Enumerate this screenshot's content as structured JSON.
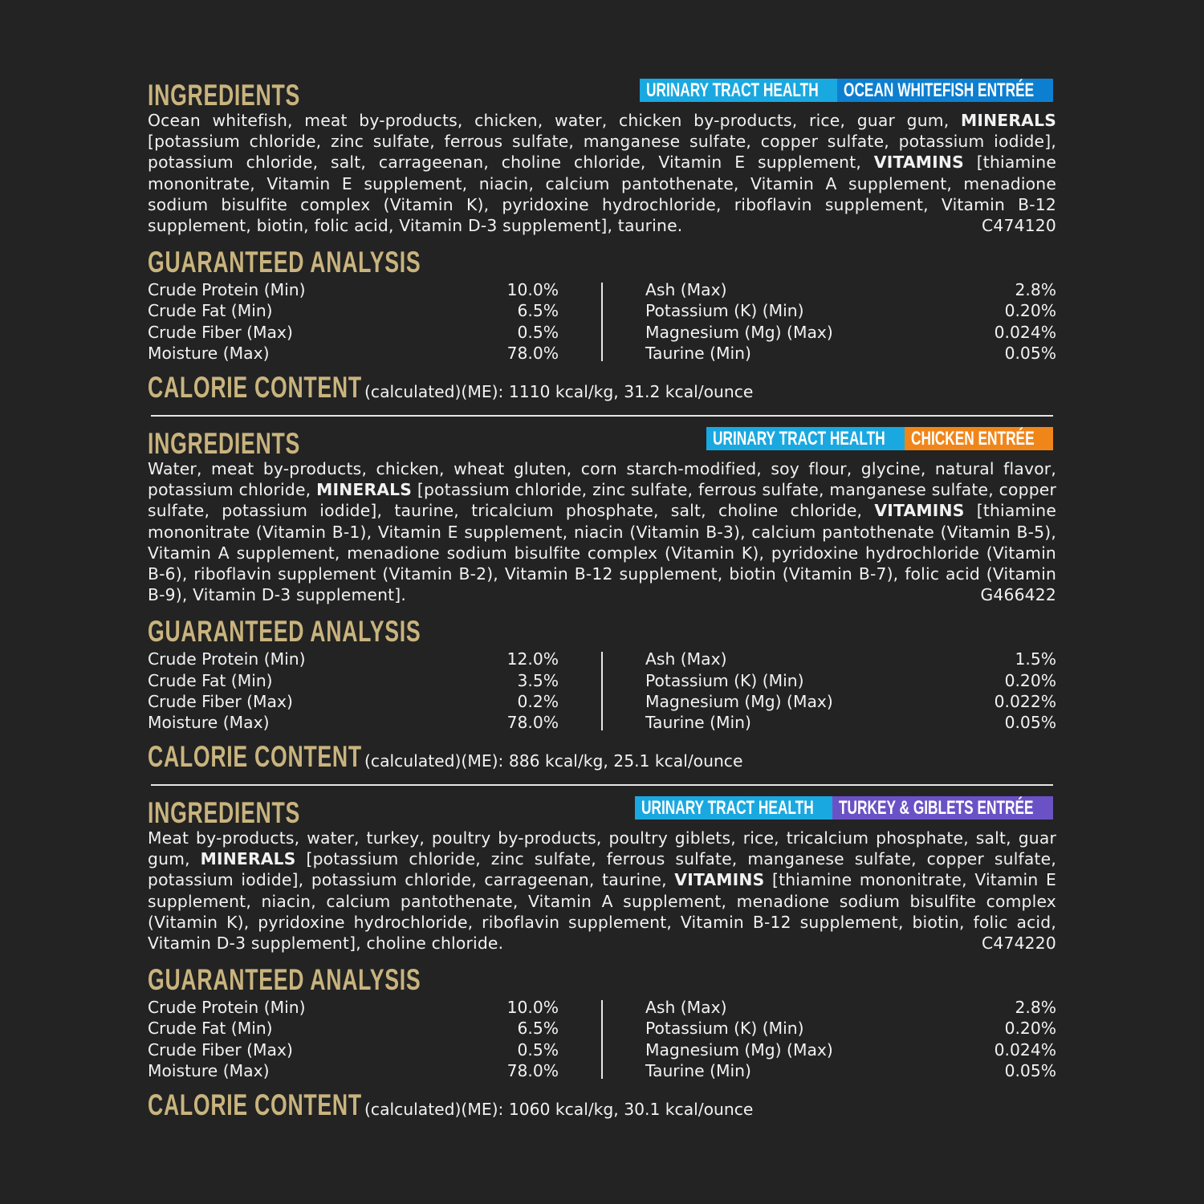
{
  "colors": {
    "background": "#232323",
    "heading_gold": "#c9b47e",
    "urinary_badge": "#1aa8e0",
    "whitefish_badge": "#0d7fd0",
    "chicken_badge": "#f0861a",
    "turkey_badge": "#6a52c6"
  },
  "labels": {
    "ingredients": "INGREDIENTS",
    "guaranteed_analysis": "GUARANTEED ANALYSIS",
    "calorie_content": "CALORIE CONTENT"
  },
  "products": [
    {
      "badges": [
        {
          "text": "URINARY TRACT HEALTH",
          "color": "#1aa8e0"
        },
        {
          "text": "OCEAN WHITEFISH ENTRÉE",
          "color": "#0d7fd0"
        }
      ],
      "ingredients": [
        {
          "t": "Ocean whitefish, meat by-products, chicken, water, chicken by-products, rice, guar gum, "
        },
        {
          "t": "MINERALS",
          "b": true
        },
        {
          "t": " [potassium chloride, zinc sulfate, ferrous sulfate, manganese sulfate, copper sulfate, potassium iodide], potassium chloride, salt, carrageenan, choline chloride, Vitamin E supplement, "
        },
        {
          "t": "VITAMINS",
          "b": true
        },
        {
          "t": " [thiamine mononitrate, Vitamin E supplement, niacin, calcium pantothenate, Vitamin A supplement, menadione sodium bisulfite complex (Vitamin K), pyridoxine hydrochloride, riboflavin supplement, Vitamin B-12 supplement, biotin, folic acid, Vitamin D-3 supplement], taurine."
        }
      ],
      "code": "C474120",
      "analysis_left": [
        [
          "Crude Protein (Min)",
          "10.0%"
        ],
        [
          "Crude Fat (Min)",
          "6.5%"
        ],
        [
          "Crude Fiber (Max)",
          "0.5%"
        ],
        [
          "Moisture (Max)",
          "78.0%"
        ]
      ],
      "analysis_right": [
        [
          "Ash (Max)",
          "2.8%"
        ],
        [
          "Potassium (K) (Min)",
          "0.20%"
        ],
        [
          "Magnesium (Mg) (Max)",
          "0.024%"
        ],
        [
          "Taurine (Min)",
          "0.05%"
        ]
      ],
      "calorie": "(calculated)(ME): 1110 kcal/kg, 31.2 kcal/ounce"
    },
    {
      "badges": [
        {
          "text": "URINARY TRACT HEALTH",
          "color": "#1aa8e0"
        },
        {
          "text": "CHICKEN ENTRÉE",
          "color": "#f0861a"
        }
      ],
      "ingredients": [
        {
          "t": "Water, meat by-products, chicken, wheat gluten, corn starch-modified, soy flour, glycine, natural flavor, potassium chloride, "
        },
        {
          "t": "MINERALS",
          "b": true
        },
        {
          "t": " [potassium chloride, zinc sulfate, ferrous sulfate, manganese sulfate, copper sulfate, potassium iodide], taurine, tricalcium phosphate, salt, choline chloride, "
        },
        {
          "t": "VITAMINS",
          "b": true
        },
        {
          "t": " [thiamine mononitrate (Vitamin B-1), Vitamin E supplement, niacin (Vitamin B-3), calcium pantothenate (Vitamin B-5), Vitamin A supplement, menadione sodium bisulfite complex (Vitamin K), pyridoxine hydrochloride (Vitamin B-6), riboflavin supplement (Vitamin B-2), Vitamin B-12 supplement, biotin (Vitamin B-7), folic acid (Vitamin B-9), Vitamin D-3 supplement]."
        }
      ],
      "code": "G466422",
      "analysis_left": [
        [
          "Crude Protein (Min)",
          "12.0%"
        ],
        [
          "Crude Fat (Min)",
          "3.5%"
        ],
        [
          "Crude Fiber (Max)",
          "0.2%"
        ],
        [
          "Moisture (Max)",
          "78.0%"
        ]
      ],
      "analysis_right": [
        [
          "Ash (Max)",
          "1.5%"
        ],
        [
          "Potassium (K) (Min)",
          "0.20%"
        ],
        [
          "Magnesium (Mg) (Max)",
          "0.022%"
        ],
        [
          "Taurine (Min)",
          "0.05%"
        ]
      ],
      "calorie": "(calculated)(ME): 886 kcal/kg, 25.1 kcal/ounce"
    },
    {
      "badges": [
        {
          "text": "URINARY TRACT HEALTH",
          "color": "#1aa8e0"
        },
        {
          "text": "TURKEY & GIBLETS ENTRÉE",
          "color": "#6a52c6"
        }
      ],
      "ingredients": [
        {
          "t": "Meat by-products, water, turkey, poultry by-products, poultry giblets, rice, tricalcium phosphate, salt, guar gum, "
        },
        {
          "t": "MINERALS",
          "b": true
        },
        {
          "t": " [potassium chloride, zinc sulfate, ferrous sulfate, manganese sulfate, copper sulfate, potassium iodide], potassium chloride, carrageenan, taurine, "
        },
        {
          "t": "VITAMINS",
          "b": true
        },
        {
          "t": " [thiamine mononitrate, Vitamin E supplement, niacin, calcium pantothenate, Vitamin A supplement, menadione sodium bisulfite complex (Vitamin K), pyridoxine hydrochloride, riboflavin supplement, Vitamin B-12 supplement, biotin, folic acid, Vitamin D-3 supplement], choline chloride."
        }
      ],
      "code": "C474220",
      "analysis_left": [
        [
          "Crude Protein (Min)",
          "10.0%"
        ],
        [
          "Crude Fat (Min)",
          "6.5%"
        ],
        [
          "Crude Fiber (Max)",
          "0.5%"
        ],
        [
          "Moisture (Max)",
          "78.0%"
        ]
      ],
      "analysis_right": [
        [
          "Ash (Max)",
          "2.8%"
        ],
        [
          "Potassium (K) (Min)",
          "0.20%"
        ],
        [
          "Magnesium (Mg) (Max)",
          "0.024%"
        ],
        [
          "Taurine (Min)",
          "0.05%"
        ]
      ],
      "calorie": "(calculated)(ME): 1060 kcal/kg, 30.1 kcal/ounce"
    }
  ]
}
